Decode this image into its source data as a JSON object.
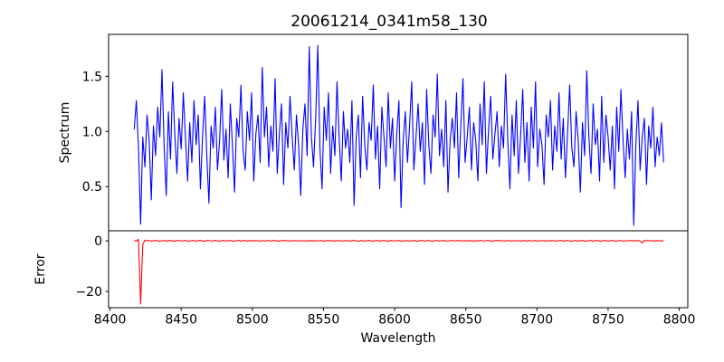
{
  "figure_title": "20061214_0341m58_130",
  "colors": {
    "spectrum_line": "#0000ff",
    "error_line": "#ff0000",
    "axis": "#000000",
    "background": "#ffffff"
  },
  "chart_data": [
    {
      "type": "line",
      "title": "20061214_0341m58_130",
      "ylabel": "Spectrum",
      "xlabel": "",
      "xlim": [
        8399,
        8806
      ],
      "ylim": [
        0.1,
        1.88
      ],
      "grid": false,
      "legend": null,
      "yticks": [
        [
          0.5,
          "0.5"
        ],
        [
          1.0,
          "1.0"
        ],
        [
          1.5,
          "1.5"
        ]
      ],
      "xticks": [],
      "series": [
        {
          "name": "spectrum",
          "color": "#0000ff",
          "x_start": 8417,
          "x_step": 1.5,
          "values": [
            1.02,
            1.28,
            0.85,
            0.16,
            0.95,
            0.68,
            1.15,
            0.92,
            0.38,
            1.05,
            0.78,
            1.22,
            0.95,
            1.56,
            0.88,
            0.42,
            1.18,
            0.75,
            1.45,
            0.98,
            0.62,
            1.12,
            0.84,
            1.35,
            0.95,
            0.55,
            1.08,
            0.72,
            1.28,
            0.88,
            1.15,
            0.48,
            0.95,
            1.32,
            0.78,
            0.35,
            1.05,
            0.85,
            1.22,
            0.65,
            0.92,
            1.38,
            0.74,
            1.02,
            0.58,
            1.25,
            0.88,
            0.45,
            1.12,
            0.95,
            1.42,
            0.82,
            0.65,
            1.18,
            0.92,
            1.35,
            0.55,
            0.98,
            1.15,
            0.72,
            1.58,
            0.95,
            1.22,
            0.68,
            1.05,
            0.82,
            1.48,
            0.62,
            0.98,
            1.25,
            0.52,
            1.08,
            0.85,
            1.32,
            0.95,
            0.65,
            1.15,
            0.88,
            0.42,
            1.02,
            1.25,
            0.78,
            1.77,
            0.95,
            0.68,
            1.12,
            1.78,
            0.85,
            0.48,
            1.22,
            0.92,
            1.35,
            0.62,
            1.05,
            0.78,
            1.45,
            0.95,
            0.55,
            1.18,
            0.85,
            1.02,
            0.72,
            1.28,
            0.33,
            0.95,
            1.15,
            0.58,
            1.32,
            0.88,
            0.65,
            1.08,
            0.92,
            1.42,
            0.75,
            1.05,
            0.48,
            1.22,
            0.95,
            0.68,
            1.35,
            0.85,
            1.12,
            0.55,
            0.98,
            1.28,
            0.31,
            0.92,
            1.18,
            0.72,
            1.05,
            1.45,
            0.65,
            0.95,
            1.25,
            0.82,
            1.08,
            0.52,
            1.38,
            0.88,
            0.62,
            1.15,
            0.95,
            1.52,
            0.78,
            1.02,
            0.68,
            1.28,
            0.45,
            0.92,
            1.12,
            0.85,
            1.35,
            0.58,
            1.05,
            1.48,
            0.72,
            0.95,
            1.22,
            0.65,
            1.08,
            0.92,
            0.55,
            1.25,
            0.88,
            1.45,
            0.62,
            1.02,
            1.32,
            0.75,
            0.98,
            1.18,
            0.68,
            1.05,
            0.85,
            1.52,
            0.92,
            0.48,
            1.15,
            0.78,
            1.28,
            0.62,
            0.95,
            1.38,
            0.72,
            1.08,
            0.55,
            1.22,
            0.85,
            1.45,
            0.68,
            1.02,
            0.88,
            0.52,
            1.15,
            0.95,
            1.28,
            0.65,
            1.05,
            0.82,
            1.35,
            0.75,
            1.12,
            0.58,
            0.98,
            1.42,
            0.85,
            0.68,
            1.18,
            0.92,
            0.45,
            1.08,
            0.78,
            1.55,
            0.95,
            0.62,
            1.25,
            0.88,
            1.02,
            0.55,
            1.32,
            0.72,
            1.15,
            0.95,
            0.65,
            1.05,
            0.48,
            1.22,
            0.82,
            1.38,
            0.92,
            0.58,
            1.02,
            0.75,
            1.18,
            0.15,
            0.88,
            1.28,
            0.65,
            0.95,
            1.12,
            0.52,
            1.05,
            0.85,
            1.22,
            0.68,
            0.95,
            0.78,
            1.08,
            0.72
          ]
        }
      ]
    },
    {
      "type": "line",
      "title": "",
      "ylabel": "Error",
      "xlabel": "Wavelength",
      "xlim": [
        8399,
        8806
      ],
      "ylim": [
        -26.4,
        3.96
      ],
      "grid": false,
      "legend": null,
      "yticks": [
        [
          -20,
          "−20"
        ],
        [
          0,
          "0"
        ]
      ],
      "xticks": [
        [
          8400,
          "8400"
        ],
        [
          8450,
          "8450"
        ],
        [
          8500,
          "8500"
        ],
        [
          8550,
          "8550"
        ],
        [
          8600,
          "8600"
        ],
        [
          8650,
          "8650"
        ],
        [
          8700,
          "8700"
        ],
        [
          8750,
          "8750"
        ],
        [
          8800,
          "8800"
        ]
      ],
      "series": [
        {
          "name": "error",
          "color": "#ff0000",
          "x_start": 8417,
          "x_step": 1.5,
          "values": [
            0.1,
            -0.12,
            0.6,
            -25,
            -1.5,
            0.25,
            0.08,
            0.12,
            -0.1,
            0.05,
            0.15,
            -0.08,
            -0.14,
            0.08,
            0.1,
            -0.12,
            0.05,
            0.14,
            -0.07,
            -0.13,
            0.09,
            0.11,
            -0.1,
            0.06,
            0.13,
            -0.09,
            -0.14,
            0.07,
            0.1,
            -0.11,
            0.05,
            0.14,
            -0.08,
            -0.12,
            0.09,
            0.12,
            -0.1,
            0.04,
            0.13,
            -0.07,
            -0.13,
            0.08,
            0.11,
            -0.09,
            0.05,
            0.14,
            -0.11,
            -0.06,
            0.1,
            0.12,
            -0.08,
            0.06,
            0.13,
            -0.12,
            0.07,
            0.1,
            -0.09,
            0.14,
            -0.05,
            -0.13,
            0.11,
            -0.07,
            0.09,
            0.12,
            -0.1,
            0.05,
            0.13,
            -0.08,
            -0.12,
            0.06,
            0.1,
            0.14,
            -0.09,
            0.07,
            -0.13,
            0.11,
            0.04,
            -0.1,
            0.12,
            -0.06,
            0.08,
            -0.12,
            0.1,
            0.05,
            -0.08,
            0.13,
            -0.11,
            0.07,
            0.09,
            -0.14,
            0.06,
            0.12,
            -0.07,
            0.1,
            -0.12,
            0.08,
            0.14,
            -0.05,
            -0.1,
            0.11,
            0.1,
            -0.12,
            0.05,
            0.15,
            -0.08,
            -0.15,
            0.08,
            0.1,
            -0.12,
            0.05,
            0.15,
            -0.08,
            -0.14,
            0.08,
            0.1,
            -0.12,
            0.05,
            0.14,
            -0.07,
            -0.13,
            0.09,
            0.11,
            -0.1,
            0.06,
            0.13,
            -0.09,
            -0.14,
            0.07,
            0.1,
            -0.11,
            0.05,
            0.14,
            -0.08,
            -0.12,
            0.09,
            0.12,
            -0.1,
            0.04,
            0.13,
            -0.07,
            -0.13,
            0.08,
            0.11,
            -0.09,
            0.05,
            0.14,
            -0.11,
            -0.06,
            0.1,
            0.12,
            -0.08,
            0.06,
            0.13,
            -0.12,
            0.07,
            0.1,
            -0.09,
            0.14,
            -0.05,
            -0.13,
            0.11,
            -0.07,
            0.09,
            0.12,
            -0.1,
            0.05,
            0.13,
            -0.08,
            -0.12,
            0.06,
            0.1,
            0.14,
            -0.09,
            0.07,
            -0.13,
            0.11,
            0.04,
            -0.1,
            0.12,
            -0.06,
            0.08,
            -0.12,
            0.1,
            0.05,
            -0.08,
            0.13,
            -0.11,
            0.07,
            0.09,
            -0.14,
            0.06,
            0.12,
            -0.07,
            0.1,
            -0.12,
            0.08,
            0.14,
            -0.05,
            -0.1,
            0.11,
            0.1,
            -0.12,
            0.05,
            0.15,
            -0.08,
            -0.15,
            0.08,
            0.1,
            -0.12,
            0.05,
            0.15,
            -0.08,
            -0.14,
            0.08,
            0.1,
            -0.12,
            0.05,
            0.14,
            -0.07,
            -0.13,
            0.09,
            0.11,
            -0.1,
            0.06,
            0.13,
            -0.09,
            -0.14,
            0.07,
            0.1,
            -0.11,
            0.07,
            -0.11,
            0.09,
            0.12,
            -0.08,
            0.1,
            0.1,
            -0.13,
            -0.8,
            0.11,
            0.05,
            0.12,
            -0.09,
            0.08,
            -0.12,
            0.1,
            0.06,
            -0.08,
            0.09
          ]
        }
      ]
    }
  ]
}
